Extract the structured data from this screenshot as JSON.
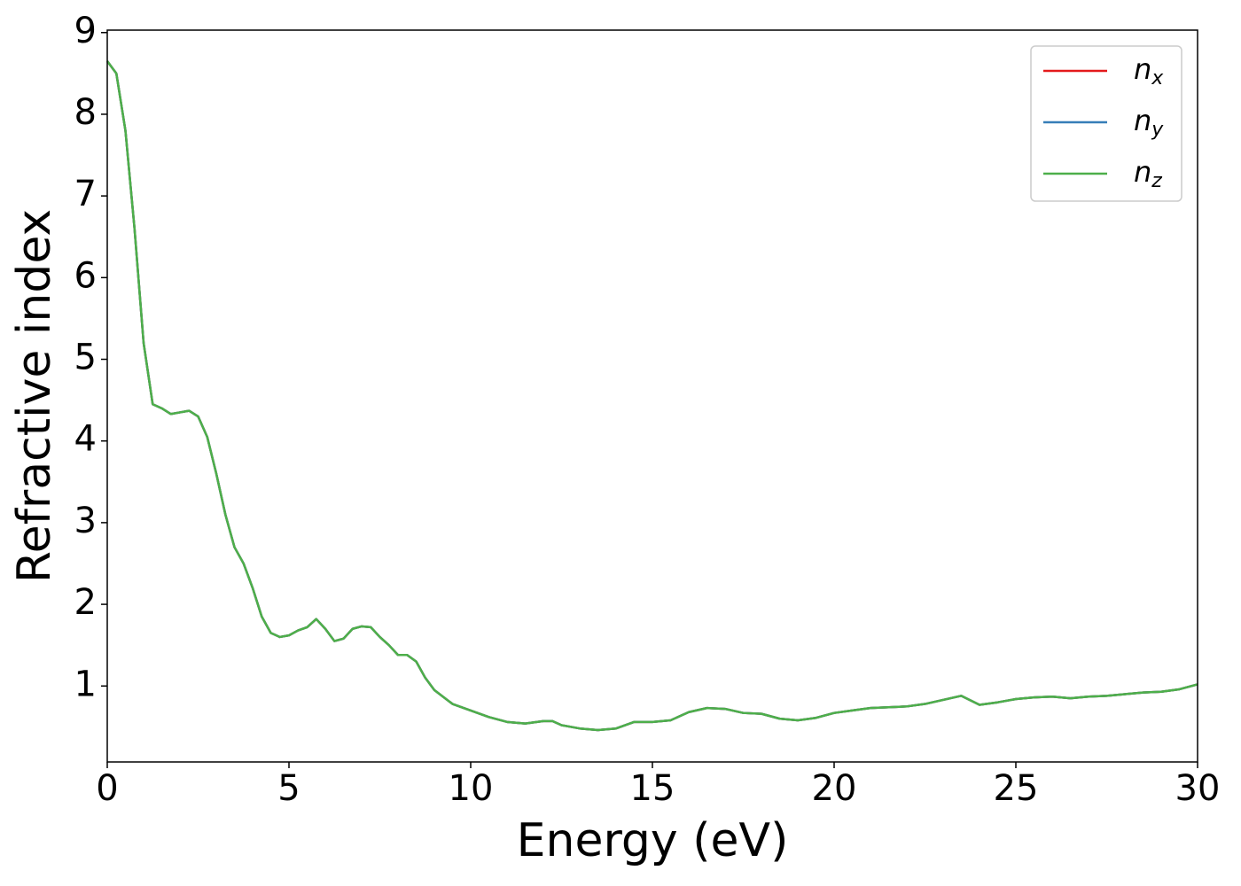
{
  "chart_data": {
    "type": "line",
    "xlabel": "Energy (eV)",
    "ylabel": "Refractive index",
    "x": [
      0,
      0.25,
      0.5,
      0.75,
      1.0,
      1.25,
      1.5,
      1.75,
      2.0,
      2.25,
      2.5,
      2.75,
      3.0,
      3.25,
      3.5,
      3.75,
      4.0,
      4.25,
      4.5,
      4.75,
      5.0,
      5.25,
      5.5,
      5.75,
      6.0,
      6.25,
      6.5,
      6.75,
      7.0,
      7.25,
      7.5,
      7.75,
      8.0,
      8.25,
      8.5,
      8.75,
      9.0,
      9.5,
      10,
      10.5,
      11,
      11.5,
      12,
      12.25,
      12.5,
      13,
      13.5,
      14,
      14.5,
      15,
      15.5,
      16,
      16.5,
      17,
      17.5,
      18,
      18.5,
      19,
      19.5,
      20,
      20.5,
      21,
      21.5,
      22,
      22.5,
      23,
      23.5,
      24,
      24.5,
      25,
      25.5,
      26,
      26.5,
      27,
      27.5,
      28,
      28.5,
      29,
      29.5,
      30
    ],
    "series": [
      {
        "name": "nx",
        "color": "#e41a1c",
        "values": [
          8.65,
          8.5,
          7.8,
          6.6,
          5.2,
          4.45,
          4.4,
          4.33,
          4.35,
          4.37,
          4.3,
          4.05,
          3.6,
          3.1,
          2.7,
          2.5,
          2.2,
          1.85,
          1.65,
          1.6,
          1.62,
          1.68,
          1.72,
          1.82,
          1.7,
          1.55,
          1.58,
          1.7,
          1.73,
          1.72,
          1.6,
          1.5,
          1.38,
          1.38,
          1.3,
          1.1,
          0.95,
          0.78,
          0.7,
          0.62,
          0.56,
          0.54,
          0.57,
          0.57,
          0.52,
          0.48,
          0.46,
          0.48,
          0.56,
          0.56,
          0.58,
          0.68,
          0.73,
          0.72,
          0.67,
          0.66,
          0.6,
          0.58,
          0.61,
          0.67,
          0.7,
          0.73,
          0.74,
          0.75,
          0.78,
          0.83,
          0.88,
          0.77,
          0.8,
          0.84,
          0.86,
          0.87,
          0.85,
          0.87,
          0.88,
          0.9,
          0.92,
          0.93,
          0.96,
          1.02
        ]
      },
      {
        "name": "ny",
        "color": "#377eb8",
        "values": [
          8.65,
          8.5,
          7.8,
          6.6,
          5.2,
          4.45,
          4.4,
          4.33,
          4.35,
          4.37,
          4.3,
          4.05,
          3.6,
          3.1,
          2.7,
          2.5,
          2.2,
          1.85,
          1.65,
          1.6,
          1.62,
          1.68,
          1.72,
          1.82,
          1.7,
          1.55,
          1.58,
          1.7,
          1.73,
          1.72,
          1.6,
          1.5,
          1.38,
          1.38,
          1.3,
          1.1,
          0.95,
          0.78,
          0.7,
          0.62,
          0.56,
          0.54,
          0.57,
          0.57,
          0.52,
          0.48,
          0.46,
          0.48,
          0.56,
          0.56,
          0.58,
          0.68,
          0.73,
          0.72,
          0.67,
          0.66,
          0.6,
          0.58,
          0.61,
          0.67,
          0.7,
          0.73,
          0.74,
          0.75,
          0.78,
          0.83,
          0.88,
          0.77,
          0.8,
          0.84,
          0.86,
          0.87,
          0.85,
          0.87,
          0.88,
          0.9,
          0.92,
          0.93,
          0.96,
          1.02
        ]
      },
      {
        "name": "nz",
        "color": "#4daf4a",
        "values": [
          8.65,
          8.5,
          7.8,
          6.6,
          5.2,
          4.45,
          4.4,
          4.33,
          4.35,
          4.37,
          4.3,
          4.05,
          3.6,
          3.1,
          2.7,
          2.5,
          2.2,
          1.85,
          1.65,
          1.6,
          1.62,
          1.68,
          1.72,
          1.82,
          1.7,
          1.55,
          1.58,
          1.7,
          1.73,
          1.72,
          1.6,
          1.5,
          1.38,
          1.38,
          1.3,
          1.1,
          0.95,
          0.78,
          0.7,
          0.62,
          0.56,
          0.54,
          0.57,
          0.57,
          0.52,
          0.48,
          0.46,
          0.48,
          0.56,
          0.56,
          0.58,
          0.68,
          0.73,
          0.72,
          0.67,
          0.66,
          0.6,
          0.58,
          0.61,
          0.67,
          0.7,
          0.73,
          0.74,
          0.75,
          0.78,
          0.83,
          0.88,
          0.77,
          0.8,
          0.84,
          0.86,
          0.87,
          0.85,
          0.87,
          0.88,
          0.9,
          0.92,
          0.93,
          0.96,
          1.02
        ]
      }
    ],
    "xlim": [
      0,
      30
    ],
    "xticks": [
      0,
      5,
      10,
      15,
      20,
      25,
      30
    ],
    "ylim": [
      0.07,
      9.03
    ],
    "yticks": [
      1,
      2,
      3,
      4,
      5,
      6,
      7,
      8,
      9
    ],
    "grid": false,
    "legend": "upper right"
  }
}
